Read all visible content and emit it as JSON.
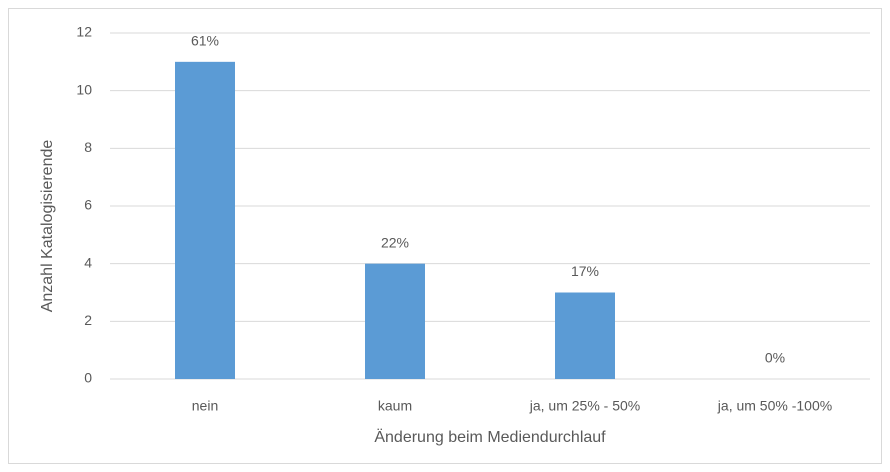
{
  "chart_data": {
    "type": "bar",
    "categories": [
      "nein",
      "kaum",
      "ja, um 25% - 50%",
      "ja, um 50% -100%"
    ],
    "values": [
      11,
      4,
      3,
      0
    ],
    "percent_labels": [
      "61%",
      "22%",
      "17%",
      "0%"
    ],
    "color": "#5b9bd5",
    "xlabel": "Änderung beim Mediendurchlauf",
    "ylabel": "Anzahl Katalogisierende",
    "ylim": [
      0,
      12
    ],
    "yticks": [
      0,
      2,
      4,
      6,
      8,
      10,
      12
    ],
    "grid": true
  }
}
